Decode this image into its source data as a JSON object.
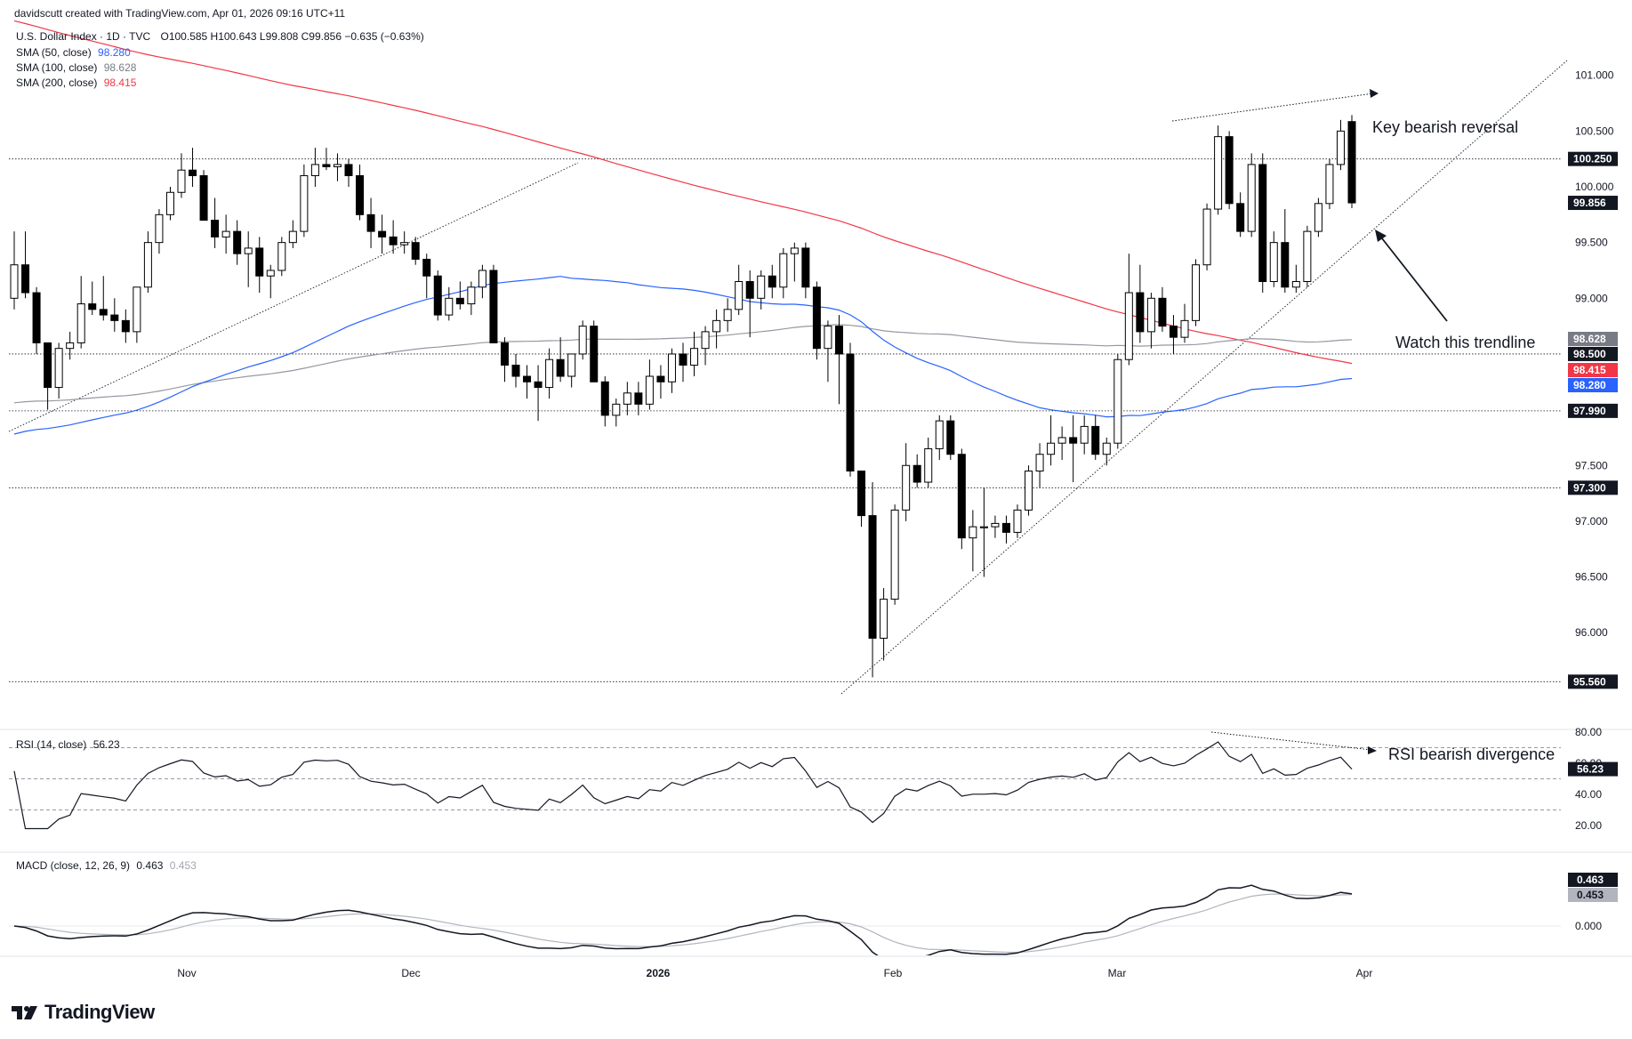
{
  "credit": "davidscutt created with TradingView.com, Apr 01, 2026 09:16 UTC+11",
  "symbol_line": {
    "name": "U.S. Dollar Index · 1D · TVC",
    "ohlc": "O100.585  H100.643  L99.808  C99.856  −0.635 (−0.63%)"
  },
  "indicators": [
    {
      "label": "SMA (50, close)",
      "value": "98.280",
      "color": "#2962ff"
    },
    {
      "label": "SMA (100, close)",
      "value": "98.628",
      "color": "#787b86"
    },
    {
      "label": "SMA (200, close)",
      "value": "98.415",
      "color": "#f23645"
    }
  ],
  "rsi_header": {
    "label": "RSI (14, close)",
    "value": "56.23"
  },
  "macd_header": {
    "label": "MACD (close, 12, 26, 9)",
    "value": "0.463",
    "signal": "0.453"
  },
  "logo_text": "TradingView",
  "colors": {
    "up": "#ffffff",
    "down": "#000000",
    "sma50": "#2962ff",
    "sma100": "#9598a1",
    "sma200": "#f23645"
  },
  "chart_data": [
    {
      "type": "candlestick",
      "title": "U.S. Dollar Index · 1D · TVC",
      "y_range": [
        95.2,
        101.4
      ],
      "y_ticks": [
        "101.000",
        "100.500",
        "100.000",
        "99.500",
        "99.000",
        "98.500",
        "98.000",
        "97.500",
        "97.000",
        "96.500",
        "96.000"
      ],
      "x_ticks": [
        "Nov",
        "Dec",
        "2026",
        "Feb",
        "Mar",
        "Apr"
      ],
      "candles": [
        [
          99.0,
          99.6,
          98.9,
          99.3
        ],
        [
          99.3,
          99.6,
          99.0,
          99.05
        ],
        [
          99.05,
          99.1,
          98.5,
          98.6
        ],
        [
          98.6,
          98.6,
          98.0,
          98.2
        ],
        [
          98.2,
          98.6,
          98.1,
          98.55
        ],
        [
          98.55,
          98.7,
          98.45,
          98.6
        ],
        [
          98.6,
          99.2,
          98.55,
          98.95
        ],
        [
          98.95,
          99.15,
          98.85,
          98.9
        ],
        [
          98.9,
          99.2,
          98.8,
          98.85
        ],
        [
          98.85,
          99.0,
          98.7,
          98.8
        ],
        [
          98.8,
          98.9,
          98.6,
          98.7
        ],
        [
          98.7,
          99.1,
          98.6,
          99.1
        ],
        [
          99.1,
          99.6,
          99.05,
          99.5
        ],
        [
          99.5,
          99.8,
          99.4,
          99.75
        ],
        [
          99.75,
          100.0,
          99.7,
          99.95
        ],
        [
          99.95,
          100.3,
          99.9,
          100.15
        ],
        [
          100.15,
          100.35,
          100.0,
          100.1
        ],
        [
          100.1,
          100.15,
          99.7,
          99.7
        ],
        [
          99.7,
          99.9,
          99.45,
          99.55
        ],
        [
          99.55,
          99.75,
          99.4,
          99.6
        ],
        [
          99.6,
          99.7,
          99.3,
          99.4
        ],
        [
          99.4,
          99.6,
          99.1,
          99.45
        ],
        [
          99.45,
          99.55,
          99.05,
          99.2
        ],
        [
          99.2,
          99.3,
          99.0,
          99.25
        ],
        [
          99.25,
          99.55,
          99.2,
          99.5
        ],
        [
          99.5,
          99.7,
          99.45,
          99.6
        ],
        [
          99.6,
          100.2,
          99.55,
          100.1
        ],
        [
          100.1,
          100.35,
          100.0,
          100.2
        ],
        [
          100.2,
          100.35,
          100.15,
          100.18
        ],
        [
          100.18,
          100.3,
          100.05,
          100.2
        ],
        [
          100.2,
          100.25,
          100.0,
          100.1
        ],
        [
          100.1,
          100.2,
          99.7,
          99.75
        ],
        [
          99.75,
          99.9,
          99.45,
          99.6
        ],
        [
          99.6,
          99.75,
          99.4,
          99.55
        ],
        [
          99.55,
          99.7,
          99.4,
          99.48
        ],
        [
          99.48,
          99.6,
          99.4,
          99.5
        ],
        [
          99.5,
          99.55,
          99.3,
          99.35
        ],
        [
          99.35,
          99.4,
          99.0,
          99.2
        ],
        [
          99.2,
          99.25,
          98.8,
          98.85
        ],
        [
          98.85,
          99.1,
          98.8,
          99.0
        ],
        [
          99.0,
          99.15,
          98.9,
          98.95
        ],
        [
          98.95,
          99.15,
          98.85,
          99.1
        ],
        [
          99.1,
          99.3,
          99.0,
          99.25
        ],
        [
          99.25,
          99.3,
          98.6,
          98.6
        ],
        [
          98.6,
          98.65,
          98.25,
          98.4
        ],
        [
          98.4,
          98.5,
          98.2,
          98.3
        ],
        [
          98.3,
          98.4,
          98.1,
          98.25
        ],
        [
          98.25,
          98.4,
          97.9,
          98.2
        ],
        [
          98.2,
          98.55,
          98.1,
          98.45
        ],
        [
          98.45,
          98.65,
          98.25,
          98.3
        ],
        [
          98.3,
          98.5,
          98.2,
          98.5
        ],
        [
          98.5,
          98.8,
          98.45,
          98.75
        ],
        [
          98.75,
          98.8,
          98.3,
          98.25
        ],
        [
          98.25,
          98.3,
          97.85,
          97.95
        ],
        [
          97.95,
          98.1,
          97.85,
          98.05
        ],
        [
          98.05,
          98.25,
          97.95,
          98.15
        ],
        [
          98.15,
          98.25,
          97.95,
          98.05
        ],
        [
          98.05,
          98.45,
          98.0,
          98.3
        ],
        [
          98.3,
          98.4,
          98.1,
          98.25
        ],
        [
          98.25,
          98.55,
          98.15,
          98.5
        ],
        [
          98.5,
          98.6,
          98.25,
          98.4
        ],
        [
          98.4,
          98.7,
          98.3,
          98.55
        ],
        [
          98.55,
          98.75,
          98.4,
          98.7
        ],
        [
          98.7,
          98.9,
          98.55,
          98.8
        ],
        [
          98.8,
          99.0,
          98.7,
          98.9
        ],
        [
          98.9,
          99.3,
          98.85,
          99.15
        ],
        [
          99.15,
          99.25,
          98.65,
          99.0
        ],
        [
          99.0,
          99.25,
          98.9,
          99.2
        ],
        [
          99.2,
          99.3,
          99.0,
          99.1
        ],
        [
          99.1,
          99.45,
          99.0,
          99.4
        ],
        [
          99.4,
          99.5,
          99.15,
          99.45
        ],
        [
          99.45,
          99.5,
          99.0,
          99.1
        ],
        [
          99.1,
          99.15,
          98.45,
          98.55
        ],
        [
          98.55,
          98.8,
          98.25,
          98.75
        ],
        [
          98.75,
          98.85,
          98.05,
          98.5
        ],
        [
          98.5,
          98.6,
          97.4,
          97.45
        ],
        [
          97.45,
          97.45,
          96.95,
          97.05
        ],
        [
          97.05,
          97.35,
          95.6,
          95.95
        ],
        [
          95.95,
          96.4,
          95.75,
          96.3
        ],
        [
          96.3,
          97.15,
          96.25,
          97.1
        ],
        [
          97.1,
          97.7,
          97.0,
          97.5
        ],
        [
          97.5,
          97.6,
          97.3,
          97.35
        ],
        [
          97.35,
          97.75,
          97.3,
          97.65
        ],
        [
          97.65,
          97.95,
          97.55,
          97.9
        ],
        [
          97.9,
          97.95,
          97.55,
          97.6
        ],
        [
          97.6,
          97.65,
          96.75,
          96.85
        ],
        [
          96.85,
          97.1,
          96.55,
          96.95
        ],
        [
          96.95,
          97.3,
          96.5,
          96.95
        ],
        [
          96.95,
          97.05,
          96.85,
          96.98
        ],
        [
          96.98,
          97.05,
          96.8,
          96.9
        ],
        [
          96.9,
          97.15,
          96.85,
          97.1
        ],
        [
          97.1,
          97.5,
          97.05,
          97.45
        ],
        [
          97.45,
          97.7,
          97.3,
          97.6
        ],
        [
          97.6,
          97.95,
          97.5,
          97.7
        ],
        [
          97.7,
          97.85,
          97.55,
          97.75
        ],
        [
          97.75,
          97.95,
          97.35,
          97.7
        ],
        [
          97.7,
          97.95,
          97.6,
          97.85
        ],
        [
          97.85,
          97.95,
          97.55,
          97.6
        ],
        [
          97.6,
          97.75,
          97.5,
          97.7
        ],
        [
          97.7,
          98.5,
          97.65,
          98.45
        ],
        [
          98.45,
          99.4,
          98.4,
          99.05
        ],
        [
          99.05,
          99.3,
          98.6,
          98.7
        ],
        [
          98.7,
          99.05,
          98.55,
          99.0
        ],
        [
          99.0,
          99.1,
          98.7,
          98.75
        ],
        [
          98.75,
          98.85,
          98.5,
          98.65
        ],
        [
          98.65,
          98.95,
          98.6,
          98.8
        ],
        [
          98.8,
          99.35,
          98.75,
          99.3
        ],
        [
          99.3,
          99.85,
          99.25,
          99.8
        ],
        [
          99.8,
          100.55,
          99.75,
          100.45
        ],
        [
          100.45,
          100.5,
          99.8,
          99.85
        ],
        [
          99.85,
          99.95,
          99.55,
          99.6
        ],
        [
          99.6,
          100.3,
          99.55,
          100.2
        ],
        [
          100.2,
          100.3,
          99.05,
          99.15
        ],
        [
          99.15,
          99.6,
          99.1,
          99.5
        ],
        [
          99.5,
          99.8,
          99.05,
          99.1
        ],
        [
          99.1,
          99.3,
          99.05,
          99.15
        ],
        [
          99.15,
          99.65,
          99.1,
          99.6
        ],
        [
          99.6,
          99.9,
          99.55,
          99.85
        ],
        [
          99.85,
          100.25,
          99.8,
          100.2
        ],
        [
          100.2,
          100.6,
          100.15,
          100.5
        ],
        [
          100.585,
          100.643,
          99.808,
          99.856
        ]
      ],
      "levels": [
        {
          "value": 100.25,
          "label": "100.250"
        },
        {
          "value": 98.5,
          "label": "98.500"
        },
        {
          "value": 97.99,
          "label": "97.990"
        },
        {
          "value": 97.3,
          "label": "97.300"
        },
        {
          "value": 95.56,
          "label": "95.560"
        }
      ],
      "price_tags": [
        {
          "value": 99.856,
          "label": "99.856",
          "bg": "#131722",
          "fg": "#ffffff"
        },
        {
          "value": 98.628,
          "label": "98.628",
          "bg": "#787b86",
          "fg": "#ffffff"
        },
        {
          "value": 98.415,
          "label": "98.415",
          "bg": "#f23645",
          "fg": "#ffffff"
        },
        {
          "value": 98.28,
          "label": "98.280",
          "bg": "#2962ff",
          "fg": "#ffffff"
        }
      ],
      "annotations": [
        "Key bearish reversal",
        "Watch this trendline",
        "RSI bearish divergence"
      ]
    },
    {
      "type": "line",
      "title": "RSI (14, close)",
      "y_range": [
        15,
        87
      ],
      "y_ticks": [
        "80.00",
        "60.00",
        "40.00",
        "20.00"
      ],
      "bands": [
        70,
        50,
        30
      ],
      "current": {
        "value": 56.23,
        "label": "56.23"
      }
    },
    {
      "type": "line",
      "title": "MACD (close, 12, 26, 9)",
      "y_ticks": [
        "0.000"
      ],
      "series": [
        {
          "name": "MACD",
          "current": "0.463"
        },
        {
          "name": "Signal",
          "current": "0.453"
        }
      ]
    }
  ]
}
